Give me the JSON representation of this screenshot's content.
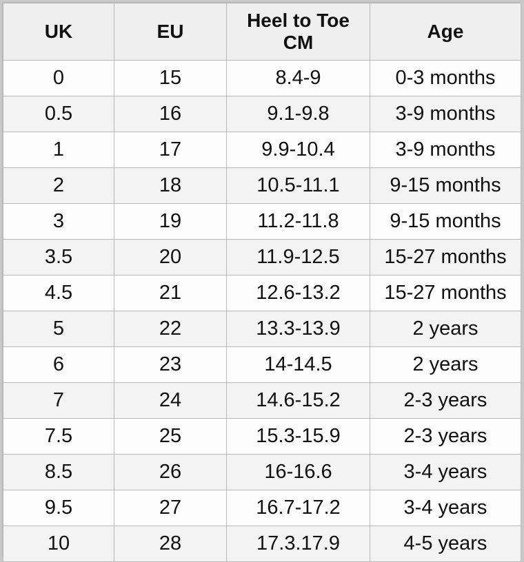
{
  "table": {
    "headers": {
      "uk": "UK",
      "eu": "EU",
      "heel_line1": "Heel to Toe",
      "heel_line2": "CM",
      "age": "Age"
    },
    "rows": [
      {
        "uk": "0",
        "eu": "15",
        "cm": "8.4-9",
        "age": "0-3 months"
      },
      {
        "uk": "0.5",
        "eu": "16",
        "cm": "9.1-9.8",
        "age": "3-9 months"
      },
      {
        "uk": "1",
        "eu": "17",
        "cm": "9.9-10.4",
        "age": "3-9 months"
      },
      {
        "uk": "2",
        "eu": "18",
        "cm": "10.5-11.1",
        "age": "9-15 months"
      },
      {
        "uk": "3",
        "eu": "19",
        "cm": "11.2-11.8",
        "age": "9-15 months"
      },
      {
        "uk": "3.5",
        "eu": "20",
        "cm": "11.9-12.5",
        "age": "15-27 months"
      },
      {
        "uk": "4.5",
        "eu": "21",
        "cm": "12.6-13.2",
        "age": "15-27 months"
      },
      {
        "uk": "5",
        "eu": "22",
        "cm": "13.3-13.9",
        "age": "2 years"
      },
      {
        "uk": "6",
        "eu": "23",
        "cm": "14-14.5",
        "age": "2 years"
      },
      {
        "uk": "7",
        "eu": "24",
        "cm": "14.6-15.2",
        "age": "2-3 years"
      },
      {
        "uk": "7.5",
        "eu": "25",
        "cm": "15.3-15.9",
        "age": "2-3 years"
      },
      {
        "uk": "8.5",
        "eu": "26",
        "cm": "16-16.6",
        "age": "3-4 years"
      },
      {
        "uk": "9.5",
        "eu": "27",
        "cm": "16.7-17.2",
        "age": "3-4 years"
      },
      {
        "uk": "10",
        "eu": "28",
        "cm": "17.3.17.9",
        "age": "4-5 years"
      }
    ]
  }
}
